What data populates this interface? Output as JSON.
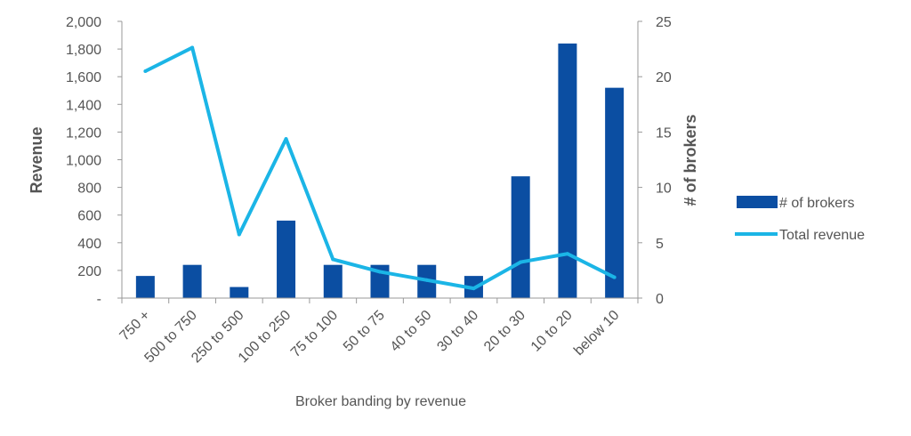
{
  "chart_data": {
    "type": "bar+line",
    "title": "",
    "xlabel": "Broker banding by revenue",
    "ylabel_left": "Revenue",
    "ylabel_right": "# of brokers",
    "categories": [
      "750 +",
      "500 to 750",
      "250 to 500",
      "100 to 250",
      "75 to 100",
      "50 to 75",
      "40 to 50",
      "30 to 40",
      "20 to 30",
      "10 to 20",
      "below 10"
    ],
    "series": [
      {
        "name": "# of brokers",
        "type": "bar",
        "axis": "right",
        "color": "#0B4EA2",
        "values": [
          2,
          3,
          1,
          7,
          3,
          3,
          3,
          2,
          11,
          23,
          19
        ]
      },
      {
        "name": "Total revenue",
        "type": "line",
        "axis": "left",
        "color": "#1BB5E6",
        "values": [
          1640,
          1810,
          460,
          1150,
          280,
          190,
          130,
          70,
          260,
          320,
          150
        ]
      }
    ],
    "ylim_left": [
      0,
      2000
    ],
    "yticks_left": [
      "-",
      "200",
      "400",
      "600",
      "800",
      "1,000",
      "1,200",
      "1,400",
      "1,600",
      "1,800",
      "2,000"
    ],
    "ylim_right": [
      0,
      25
    ],
    "yticks_right": [
      "0",
      "5",
      "10",
      "15",
      "20",
      "25"
    ],
    "grid": false,
    "legend_position": "right"
  }
}
